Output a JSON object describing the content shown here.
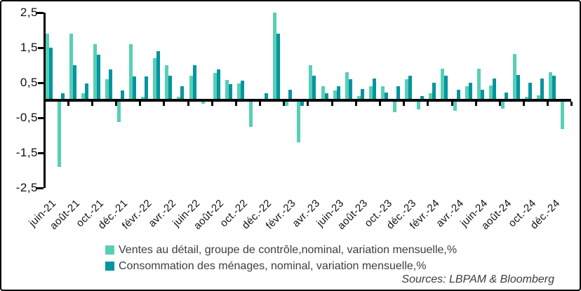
{
  "source_note": "Sources: LBPAM & Bloomberg",
  "colors": {
    "ventes_light_teal": "#57CFB5",
    "consommation_dark_teal": "#0095A0",
    "axis_black": "#000000",
    "legend_text_gray": "#3d3d3d",
    "background": "#ffffff"
  },
  "chart_data": {
    "type": "bar",
    "title": "",
    "xlabel": "",
    "ylabel": "",
    "ylim": [
      -2.5,
      2.5
    ],
    "grid": false,
    "legend_position": "bottom",
    "y_tick_values": [
      2.5,
      1.5,
      0.5,
      -0.5,
      -1.5,
      -2.5
    ],
    "y_tick_labels": [
      "2,5",
      "1,5",
      "0,5",
      "-0,5",
      "-1,5",
      "-2,5"
    ],
    "x_tick_labels": [
      "juin-21",
      "août-21",
      "oct.-21",
      "déc.-21",
      "févr.-22",
      "avr.-22",
      "juin-22",
      "août-22",
      "oct.-22",
      "déc.-22",
      "févr.-23",
      "avr.-23",
      "juin-23",
      "août-23",
      "oct.-23",
      "déc.-23",
      "févr.-24",
      "avr.-24",
      "juin-24",
      "août-24",
      "oct.-24",
      "déc.-24"
    ],
    "categories": [
      "juin-21",
      "juil-21",
      "août-21",
      "sept-21",
      "oct-21",
      "nov-21",
      "déc-21",
      "janv-22",
      "févr-22",
      "mars-22",
      "avr-22",
      "mai-22",
      "juin-22",
      "juil-22",
      "août-22",
      "sept-22",
      "oct-22",
      "nov-22",
      "déc-22",
      "janv-23",
      "févr-23",
      "mars-23",
      "avr-23",
      "mai-23",
      "juin-23",
      "juil-23",
      "août-23",
      "sept-23",
      "oct-23",
      "nov-23",
      "déc-23",
      "janv-24",
      "févr-24",
      "mars-24",
      "avr-24",
      "mai-24",
      "juin-24",
      "juil-24",
      "août-24",
      "sept-24",
      "oct-24",
      "nov-24",
      "déc-24",
      "janv-25"
    ],
    "series": [
      {
        "name": "Ventes au détail, groupe de contrôle,nominal, variation mensuelle,%",
        "color": "#57CFB5",
        "values": [
          1.9,
          -1.9,
          1.9,
          0.2,
          1.6,
          0.6,
          -0.62,
          1.6,
          0.1,
          1.2,
          1.0,
          0.1,
          0.7,
          -0.1,
          0.78,
          0.58,
          0.48,
          -0.75,
          0.05,
          2.5,
          -0.15,
          -1.2,
          1.0,
          0.4,
          0.28,
          0.8,
          0.13,
          0.41,
          0.41,
          -0.34,
          0.61,
          -0.25,
          0.2,
          0.9,
          -0.3,
          0.4,
          0.91,
          0.42,
          -0.23,
          1.32,
          0.1,
          0.14,
          0.81,
          -0.81
        ]
      },
      {
        "name": "Consommation des ménages, nominal, variation mensuelle,%",
        "color": "#0095A0",
        "values": [
          1.5,
          0.2,
          1.0,
          0.48,
          1.3,
          0.88,
          0.28,
          0.68,
          0.68,
          1.4,
          0.7,
          0.4,
          1.0,
          0.05,
          0.89,
          0.47,
          0.56,
          0.05,
          0.2,
          1.9,
          0.3,
          -0.15,
          0.7,
          0.2,
          0.4,
          0.6,
          0.33,
          0.63,
          0.23,
          0.41,
          0.71,
          0.13,
          0.5,
          0.7,
          0.3,
          0.5,
          0.3,
          0.62,
          0.22,
          0.72,
          0.51,
          0.63,
          0.71,
          null
        ]
      }
    ]
  }
}
